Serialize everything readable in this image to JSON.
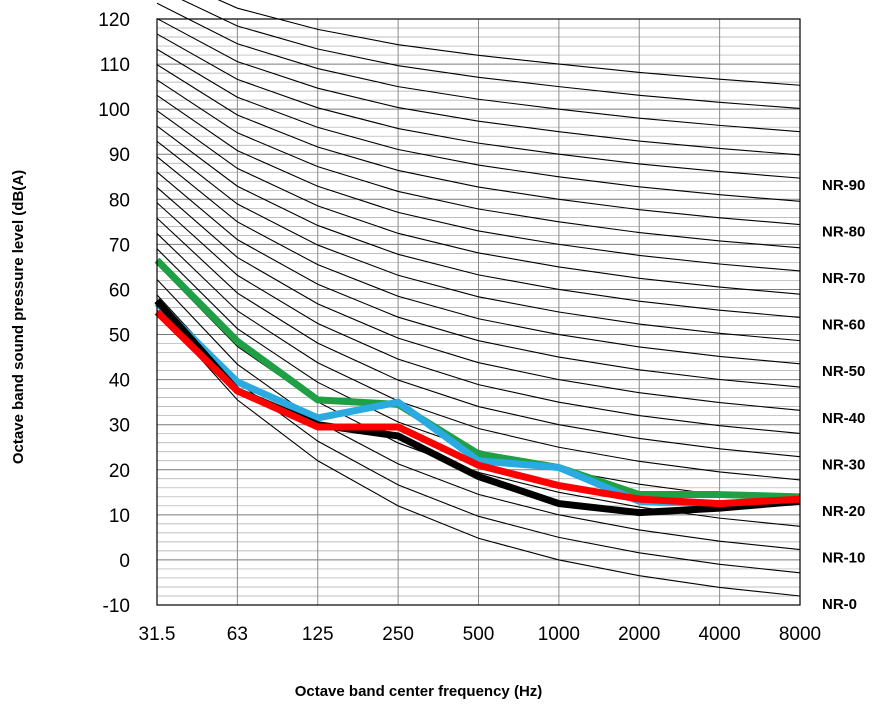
{
  "chart_data": {
    "type": "line",
    "title": "",
    "xlabel": "Octave band center frequency (Hz)",
    "ylabel": "Octave band sound pressure level (dB(A)",
    "x_categories": [
      "31.5",
      "63",
      "125",
      "250",
      "500",
      "1000",
      "2000",
      "4000",
      "8000"
    ],
    "ylim": [
      -10,
      120
    ],
    "y_major_step": 10,
    "y_minor_step": 2,
    "grid": true,
    "nr_curves": {
      "levels": [
        0,
        5,
        10,
        15,
        20,
        25,
        30,
        35,
        40,
        45,
        50,
        55,
        60,
        65,
        70,
        75,
        80,
        85,
        90,
        95,
        100,
        105,
        110
      ],
      "a": [
        55.4,
        35.5,
        22.0,
        12.0,
        4.8,
        0,
        -3.5,
        -6.1,
        -8.0
      ],
      "b": [
        0.681,
        0.79,
        0.87,
        0.93,
        0.974,
        1.0,
        1.015,
        1.025,
        1.03
      ],
      "color": "#000000",
      "labels": [
        "NR-90",
        "NR-80",
        "NR-70",
        "NR-60",
        "NR-50",
        "NR-40",
        "NR-30",
        "NR-20",
        "NR-10",
        "NR-0"
      ]
    },
    "series": [
      {
        "color": "#1fa045",
        "values": [
          66.5,
          48.5,
          35.5,
          34.5,
          23.5,
          20.5,
          14.5,
          14.5,
          14.0
        ]
      },
      {
        "color": "#29abe2",
        "values": [
          57.0,
          39.5,
          31.5,
          35.0,
          22.0,
          20.5,
          13.0,
          12.5,
          13.0
        ]
      },
      {
        "color": "#000000",
        "values": [
          57.5,
          37.5,
          30.0,
          27.5,
          18.5,
          12.5,
          10.5,
          11.5,
          13.0
        ]
      },
      {
        "color": "#ff0000",
        "values": [
          55.0,
          37.5,
          29.5,
          29.5,
          21.0,
          16.5,
          13.5,
          12.5,
          13.5
        ]
      }
    ]
  }
}
